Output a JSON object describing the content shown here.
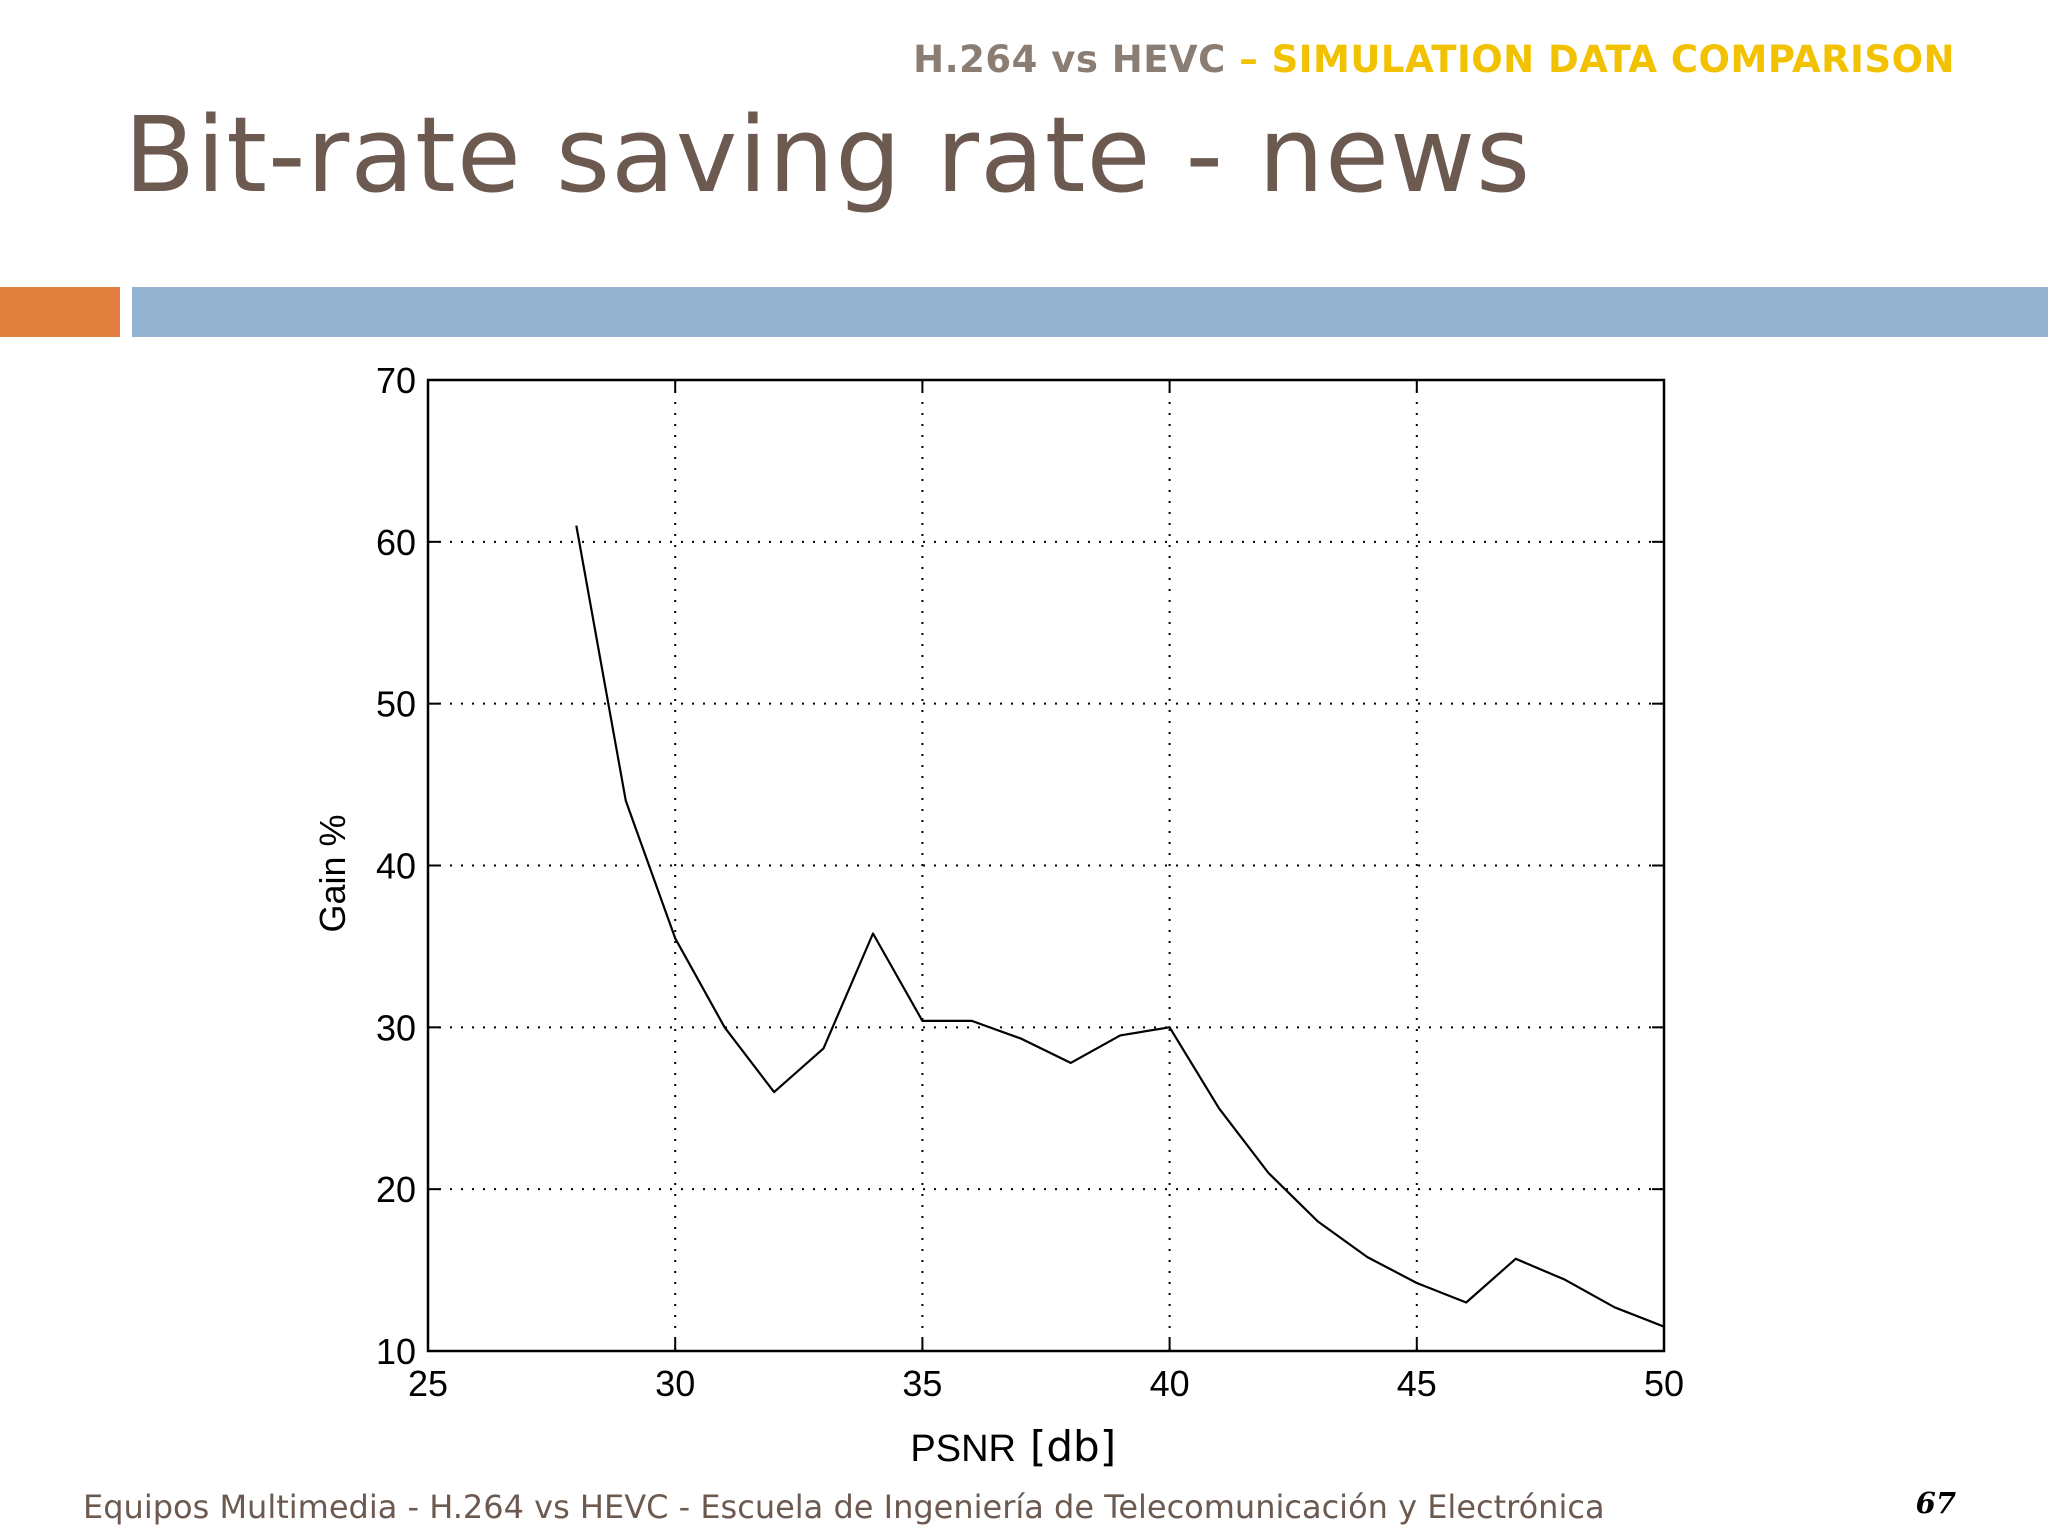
{
  "header": {
    "context_main": "H.264 vs HEVC",
    "context_accent": " – SIMULATION DATA COMPARISON",
    "title": "Bit-rate saving rate - news"
  },
  "colors": {
    "context_main": "#8a7d73",
    "context_accent": "#f2c100",
    "title": "#6c5a50",
    "bar_orange": "#e07f3e",
    "bar_blue": "#94b3d1",
    "line": "#000000"
  },
  "chart_data": {
    "type": "line",
    "xlabel": "PSNR",
    "xlabel_unit": "[db]",
    "ylabel": "Gain %",
    "xlim": [
      25,
      50
    ],
    "ylim": [
      10,
      70
    ],
    "xticks": [
      25,
      30,
      35,
      40,
      45,
      50
    ],
    "yticks": [
      10,
      20,
      30,
      40,
      50,
      60,
      70
    ],
    "grid": true,
    "legend": "none",
    "series": [
      {
        "x": [
          28,
          29,
          30,
          31,
          32,
          33,
          34,
          35,
          36,
          37,
          38,
          39,
          40,
          41,
          42,
          43,
          44,
          45,
          46,
          47,
          48,
          49,
          50
        ],
        "y": [
          61,
          44,
          35.5,
          30,
          26,
          28.7,
          35.8,
          30.4,
          30.4,
          29.3,
          27.8,
          29.5,
          30,
          25,
          21,
          18,
          15.8,
          14.2,
          13,
          15.7,
          14.4,
          12.7,
          11.5
        ]
      }
    ]
  },
  "footer": {
    "text": "Equipos Multimedia - H.264 vs HEVC - Escuela de Ingeniería de Telecomunicación y Electrónica",
    "page_number": "67"
  }
}
